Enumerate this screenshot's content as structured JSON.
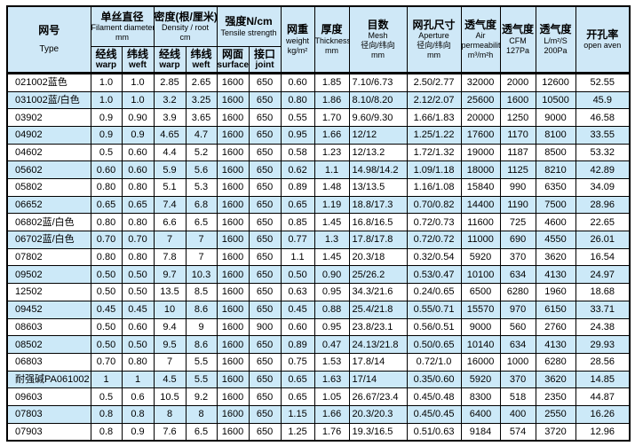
{
  "colors": {
    "header_bg": "#cfe8f7",
    "row_alt_bg": "#cce9f8",
    "row_bg": "#ffffff",
    "border": "#000000",
    "text": "#000000"
  },
  "table": {
    "header": {
      "type": {
        "zh": "网号",
        "en": "Type"
      },
      "groups": [
        {
          "zh": "单丝直径",
          "lines": [
            "Filament diameter",
            "mm"
          ],
          "sub": [
            {
              "zh": "经线",
              "en": "warp"
            },
            {
              "zh": "纬线",
              "en": "weft"
            }
          ]
        },
        {
          "zh": "密度(根/厘米)",
          "lines": [
            "Density / root",
            "cm"
          ],
          "sub": [
            {
              "zh": "经线",
              "en": "warp"
            },
            {
              "zh": "纬线",
              "en": "weft"
            }
          ]
        },
        {
          "zh": "强度N/cm",
          "lines": [
            "Tensile strength"
          ],
          "sub": [
            {
              "zh": "网面",
              "en": "surface"
            },
            {
              "zh": "接口",
              "en": "joint"
            }
          ]
        }
      ],
      "singles": [
        {
          "zh": "网重",
          "lines": [
            "weight",
            "kg/m²"
          ]
        },
        {
          "zh": "厚度",
          "lines": [
            "Thickness",
            "mm"
          ]
        },
        {
          "zh": "目数",
          "lines": [
            "Mesh",
            "径向/纬向",
            "mm"
          ]
        },
        {
          "zh": "网孔尺寸",
          "lines": [
            "Aperture",
            "径向/纬向",
            "mm"
          ]
        },
        {
          "zh": "透气度",
          "lines": [
            "Air",
            "permeability",
            "m³/m²h"
          ]
        },
        {
          "zh": "透气度",
          "lines": [
            "CFM",
            "127Pa"
          ]
        },
        {
          "zh": "透气度",
          "lines": [
            "L/m²/S",
            "200Pa"
          ]
        },
        {
          "zh": "开孔率",
          "lines": [
            "open aven"
          ]
        }
      ]
    },
    "rows": [
      [
        "021002蓝色",
        "1.0",
        "1.0",
        "2.85",
        "2.65",
        "1600",
        "650",
        "0.60",
        "1.85",
        "7.10/6.73",
        "2.50/2.77",
        "32000",
        "2000",
        "12600",
        "52.55"
      ],
      [
        "031002蓝/白色",
        "1.0",
        "1.0",
        "3.2",
        "3.25",
        "1600",
        "650",
        "0.80",
        "1.86",
        "8.10/8.20",
        "2.12/2.07",
        "25600",
        "1600",
        "10500",
        "45.9"
      ],
      [
        "03902",
        "0.9",
        "0.90",
        "3.9",
        "3.65",
        "1600",
        "650",
        "0.55",
        "1.70",
        "9.60/9.30",
        "1.66/1.83",
        "20000",
        "1250",
        "9000",
        "46.58"
      ],
      [
        "04902",
        "0.9",
        "0.9",
        "4.65",
        "4.7",
        "1600",
        "650",
        "0.95",
        "1.66",
        "12/12",
        "1.25/1.22",
        "17600",
        "1170",
        "8100",
        "33.55"
      ],
      [
        "04602",
        "0.5",
        "0.60",
        "4.4",
        "5.2",
        "1600",
        "650",
        "0.58",
        "1.23",
        "12/13.2",
        "1.72/1.32",
        "19000",
        "1187",
        "8500",
        "53.32"
      ],
      [
        "05602",
        "0.60",
        "0.60",
        "5.9",
        "5.6",
        "1600",
        "650",
        "0.62",
        "1.1",
        "14.98/14.2",
        "1.09/1.18",
        "18000",
        "1125",
        "8210",
        "42.89"
      ],
      [
        "05802",
        "0.80",
        "0.80",
        "5.1",
        "5.3",
        "1600",
        "650",
        "0.89",
        "1.48",
        "13/13.5",
        "1.16/1.08",
        "15840",
        "990",
        "6350",
        "34.09"
      ],
      [
        "06652",
        "0.65",
        "0.65",
        "7.4",
        "6.8",
        "1600",
        "650",
        "0.65",
        "1.19",
        "18.8/17.3",
        "0.70/0.82",
        "14400",
        "1190",
        "7500",
        "28.96"
      ],
      [
        "06802蓝/白色",
        "0.80",
        "0.80",
        "6.6",
        "6.5",
        "1600",
        "650",
        "0.85",
        "1.45",
        "16.8/16.5",
        "0.72/0.73",
        "11600",
        "725",
        "4600",
        "22.65"
      ],
      [
        "06702蓝/白色",
        "0.70",
        "0.70",
        "7",
        "7",
        "1600",
        "650",
        "0.77",
        "1.3",
        "17.8/17.8",
        "0.72/0.72",
        "11000",
        "690",
        "4550",
        "26.01"
      ],
      [
        "07802",
        "0.80",
        "0.80",
        "7.8",
        "7",
        "1600",
        "650",
        "1.1",
        "1.45",
        "20.3/18",
        "0.32/0.54",
        "5920",
        "370",
        "3620",
        "16.54"
      ],
      [
        "09502",
        "0.50",
        "0.50",
        "9.7",
        "10.3",
        "1600",
        "650",
        "0.50",
        "0.90",
        "25/26.2",
        "0.53/0.47",
        "10100",
        "634",
        "4130",
        "24.97"
      ],
      [
        "12502",
        "0.50",
        "0.50",
        "13.5",
        "8.5",
        "1600",
        "650",
        "0.63",
        "0.95",
        "34.3/21.6",
        "0.24/0.65",
        "6500",
        "6280",
        "1960",
        "18.68"
      ],
      [
        "09452",
        "0.45",
        "0.45",
        "10",
        "8.6",
        "1600",
        "650",
        "0.45",
        "0.88",
        "25.4/21.8",
        "0.55/0.71",
        "15570",
        "970",
        "6150",
        "33.71"
      ],
      [
        "08603",
        "0.50",
        "0.60",
        "9.4",
        "9",
        "1600",
        "900",
        "0.60",
        "0.95",
        "23.8/23.1",
        "0.56/0.51",
        "9000",
        "560",
        "2760",
        "24.38"
      ],
      [
        "08502",
        "0.50",
        "0.50",
        "9.5",
        "8.6",
        "1600",
        "650",
        "0.89",
        "0.47",
        "24.13/21.8",
        "0.50/0.65",
        "10140",
        "634",
        "4130",
        "29.93"
      ],
      [
        "06803",
        "0.70",
        "0.80",
        "7",
        "5.5",
        "1600",
        "650",
        "0.75",
        "1.53",
        "17.8/14",
        "0.72/1.0",
        "16000",
        "1000",
        "6280",
        "28.56"
      ],
      [
        "耐强碱PA061002",
        "1",
        "1",
        "4.5",
        "5.5",
        "1600",
        "650",
        "0.65",
        "1.63",
        "17/14",
        "0.35/0.60",
        "5920",
        "370",
        "3620",
        "14.85"
      ],
      [
        "09603",
        "0.5",
        "0.6",
        "10.5",
        "9.2",
        "1600",
        "650",
        "0.65",
        "1.05",
        "26.67/23.4",
        "0.45/0.48",
        "8300",
        "518",
        "2350",
        "44.87"
      ],
      [
        "07803",
        "0.8",
        "0.8",
        "8",
        "8",
        "1600",
        "650",
        "1.15",
        "1.66",
        "20.3/20.3",
        "0.45/0.45",
        "6400",
        "400",
        "2550",
        "16.26"
      ],
      [
        "07903",
        "0.8",
        "0.9",
        "7.6",
        "6.5",
        "1600",
        "650",
        "1.25",
        "1.76",
        "19.3/16.5",
        "0.51/0.63",
        "9184",
        "574",
        "3720",
        "12.96"
      ]
    ]
  }
}
